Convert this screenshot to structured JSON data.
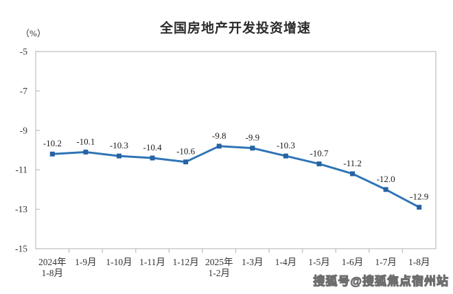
{
  "page": {
    "title": "全国房地产开发投资增速",
    "unit_label": "（%）",
    "watermark": "搜狐号@搜狐焦点宿州站"
  },
  "colors": {
    "line": "#2E74B5",
    "marker": "#2663A3",
    "axis": "#bdbdbd",
    "tick_text": "#333333",
    "label_text": "#1a1a1a"
  },
  "chart_data": {
    "type": "line",
    "title": "全国房地产开发投资增速",
    "xlabel": "",
    "ylabel": "（%）",
    "ylim": [
      -15,
      -5
    ],
    "yticks": [
      -5,
      -7,
      -9,
      -11,
      -13,
      -15
    ],
    "grid": false,
    "legend": "none",
    "marker": "square",
    "categories": [
      [
        "2024年",
        "1-8月"
      ],
      [
        "1-9月"
      ],
      [
        "1-10月"
      ],
      [
        "1-11月"
      ],
      [
        "1-12月"
      ],
      [
        "2025年",
        "1-2月"
      ],
      [
        "1-3月"
      ],
      [
        "1-4月"
      ],
      [
        "1-5月"
      ],
      [
        "1-6月"
      ],
      [
        "1-7月"
      ],
      [
        "1-8月"
      ]
    ],
    "values": [
      -10.2,
      -10.1,
      -10.3,
      -10.4,
      -10.6,
      -9.8,
      -9.9,
      -10.3,
      -10.7,
      -11.2,
      -12.0,
      -12.9
    ],
    "data_labels": [
      "-10.2",
      "-10.1",
      "-10.3",
      "-10.4",
      "-10.6",
      "-9.8",
      "-9.9",
      "-10.3",
      "-10.7",
      "-11.2",
      "-12.0",
      "-12.9"
    ]
  }
}
